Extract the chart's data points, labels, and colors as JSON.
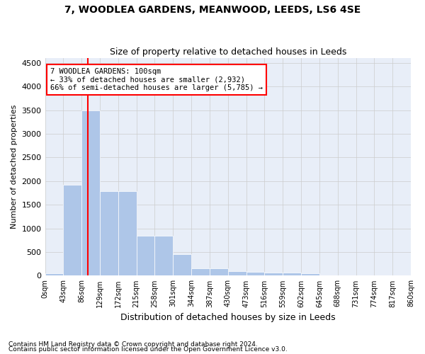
{
  "title1": "7, WOODLEA GARDENS, MEANWOOD, LEEDS, LS6 4SE",
  "title2": "Size of property relative to detached houses in Leeds",
  "xlabel": "Distribution of detached houses by size in Leeds",
  "ylabel": "Number of detached properties",
  "bin_labels": [
    "0sqm",
    "43sqm",
    "86sqm",
    "129sqm",
    "172sqm",
    "215sqm",
    "258sqm",
    "301sqm",
    "344sqm",
    "387sqm",
    "430sqm",
    "473sqm",
    "516sqm",
    "559sqm",
    "602sqm",
    "645sqm",
    "688sqm",
    "731sqm",
    "774sqm",
    "817sqm",
    "860sqm"
  ],
  "bar_values": [
    45,
    1920,
    3500,
    1780,
    1780,
    840,
    840,
    460,
    160,
    160,
    100,
    80,
    70,
    60,
    55,
    0,
    0,
    0,
    0,
    0
  ],
  "bar_color": "#aec6e8",
  "grid_color": "#cccccc",
  "bg_color": "#e8eef8",
  "vline_color": "red",
  "annotation_title": "7 WOODLEA GARDENS: 100sqm",
  "annotation_line1": "← 33% of detached houses are smaller (2,932)",
  "annotation_line2": "66% of semi-detached houses are larger (5,785) →",
  "annotation_box_color": "red",
  "footnote1": "Contains HM Land Registry data © Crown copyright and database right 2024.",
  "footnote2": "Contains public sector information licensed under the Open Government Licence v3.0.",
  "ylim": [
    0,
    4600
  ],
  "yticks": [
    0,
    500,
    1000,
    1500,
    2000,
    2500,
    3000,
    3500,
    4000,
    4500
  ],
  "bin_width": 43
}
